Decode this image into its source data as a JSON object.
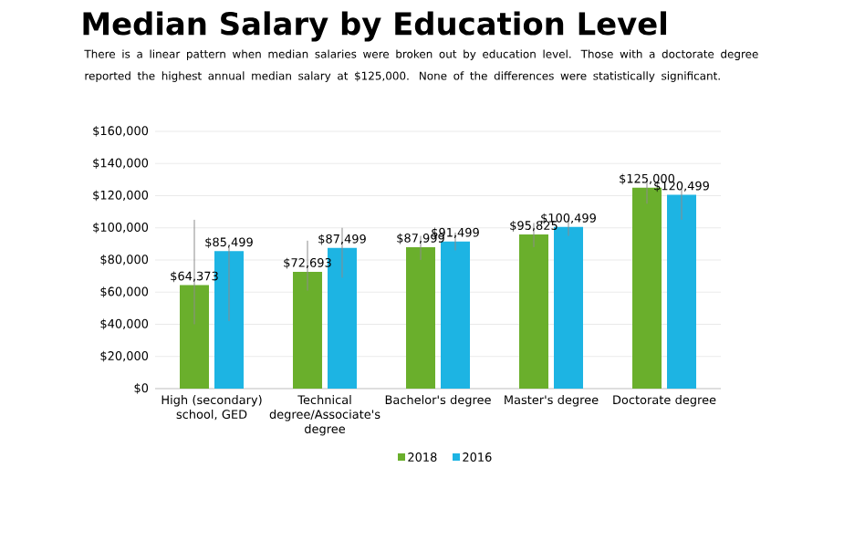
{
  "chart_data": {
    "type": "bar",
    "title": "Median Salary by Education Level",
    "subtitle": "There is a linear pattern when median salaries were broken out by education level. Those with a doctorate degree reported the highest annual median salary at $125,000. None of the differences were statistically significant.",
    "categories": [
      "High (secondary) school, GED",
      "Technical degree/Associate's degree",
      "Bachelor's degree",
      "Master's degree",
      "Doctorate degree"
    ],
    "series": [
      {
        "name": "2018",
        "color": "#6aaf2c",
        "values": [
          64373,
          72693,
          87999,
          95825,
          125000
        ],
        "value_labels": [
          "$64,373",
          "$72,693",
          "$87,999",
          "$95,825",
          "$125,000"
        ],
        "errors": [
          [
            40000,
            105000
          ],
          [
            61000,
            92000
          ],
          [
            80000,
            95000
          ],
          [
            88000,
            103000
          ],
          [
            115000,
            130000
          ]
        ]
      },
      {
        "name": "2016",
        "color": "#1db4e3",
        "values": [
          85499,
          87499,
          91499,
          100499,
          120499
        ],
        "value_labels": [
          "$85,499",
          "$87,499",
          "$91,499",
          "$100,499",
          "$120,499"
        ],
        "errors": [
          [
            42000,
            88000
          ],
          [
            69000,
            100000
          ],
          [
            86000,
            97000
          ],
          [
            95000,
            106000
          ],
          [
            105000,
            124000
          ]
        ]
      }
    ],
    "ylim": [
      0,
      160000
    ],
    "yticks": [
      {
        "value": 0,
        "label": "$0"
      },
      {
        "value": 20000,
        "label": "$20,000"
      },
      {
        "value": 40000,
        "label": "$40,000"
      },
      {
        "value": 60000,
        "label": "$60,000"
      },
      {
        "value": 80000,
        "label": "$80,000"
      },
      {
        "value": 100000,
        "label": "$100,000"
      },
      {
        "value": 120000,
        "label": "$120,000"
      },
      {
        "value": 140000,
        "label": "$140,000"
      },
      {
        "value": 160000,
        "label": "$160,000"
      }
    ],
    "grid": "y",
    "legend": "bottom"
  }
}
